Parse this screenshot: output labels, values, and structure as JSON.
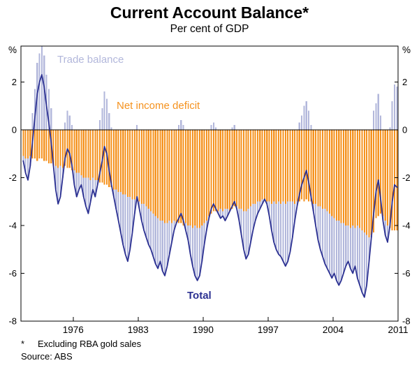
{
  "header": {
    "title": "Current Account Balance*",
    "subtitle": "Per cent of GDP"
  },
  "axes": {
    "unit_left": "%",
    "unit_right": "%",
    "ytick_labels": [
      "2",
      "0",
      "-2",
      "-4",
      "-6",
      "-8"
    ],
    "ytick_values": [
      2,
      0,
      -2,
      -4,
      -6,
      -8
    ],
    "xtick_labels": [
      "1976",
      "1983",
      "1990",
      "1997",
      "2004",
      "2011"
    ],
    "xtick_values": [
      1976,
      1983,
      1990,
      1997,
      2004,
      2011
    ]
  },
  "footnotes": {
    "asterisk": "*",
    "note": "Excluding RBA gold sales",
    "source": "Source: ABS"
  },
  "colors": {
    "trade": "#b2b7db",
    "nid": "#f5921e",
    "total": "#2c3192",
    "axis": "#000000"
  },
  "chart_data": {
    "type": "bar",
    "title": "Current Account Balance*",
    "subtitle": "Per cent of GDP",
    "ylabel": "%",
    "ylim": [
      -8,
      3.5
    ],
    "xlim": [
      1970.875,
      2011.5
    ],
    "frequency": "quarterly",
    "x_start": 1971.0,
    "x_step": 0.25,
    "legend_position": "annotations-inside-plot",
    "grid": false,
    "series": [
      {
        "name": "Trade balance",
        "type": "bar",
        "stacked_with": "Net income deficit",
        "color": "#b2b7db",
        "values": [
          -0.2,
          -0.6,
          -0.9,
          -0.4,
          0.7,
          1.7,
          2.8,
          3.2,
          3.5,
          3.1,
          2.3,
          1.7,
          0.9,
          0.0,
          -1.0,
          -1.5,
          -1.3,
          -0.4,
          0.3,
          0.8,
          0.6,
          0.2,
          -0.6,
          -1.0,
          -0.7,
          -0.4,
          -0.8,
          -1.2,
          -1.5,
          -0.9,
          -0.5,
          -0.7,
          -0.2,
          0.4,
          0.9,
          1.6,
          1.3,
          0.7,
          0.1,
          -0.3,
          -0.8,
          -1.2,
          -1.7,
          -2.1,
          -2.5,
          -2.7,
          -2.2,
          -1.4,
          -0.6,
          0.2,
          -0.3,
          -0.7,
          -1.1,
          -1.3,
          -1.5,
          -1.6,
          -1.8,
          -2.0,
          -2.1,
          -1.7,
          -2.1,
          -2.2,
          -1.8,
          -1.4,
          -0.8,
          -0.4,
          0.0,
          0.2,
          0.4,
          0.2,
          -0.3,
          -0.6,
          -1.2,
          -1.6,
          -2.1,
          -2.2,
          -2.0,
          -1.5,
          -0.9,
          -0.4,
          -0.1,
          0.2,
          0.3,
          0.1,
          -0.1,
          -0.4,
          -0.2,
          -0.5,
          -0.3,
          0.0,
          0.1,
          0.2,
          -0.1,
          -0.5,
          -1.1,
          -1.6,
          -2.0,
          -1.9,
          -1.5,
          -1.1,
          -0.7,
          -0.5,
          -0.3,
          -0.2,
          0.0,
          -0.1,
          -0.6,
          -1.1,
          -1.7,
          -1.9,
          -2.2,
          -2.2,
          -2.5,
          -2.6,
          -2.5,
          -2.1,
          -1.5,
          -0.7,
          -0.2,
          0.3,
          0.6,
          1.0,
          1.2,
          0.8,
          0.2,
          -0.3,
          -0.9,
          -1.4,
          -1.8,
          -2.0,
          -2.3,
          -2.4,
          -2.5,
          -2.6,
          -2.3,
          -2.5,
          -2.7,
          -2.4,
          -2.1,
          -1.7,
          -1.5,
          -1.7,
          -2.0,
          -1.6,
          -2.2,
          -2.4,
          -2.6,
          -2.7,
          -2.1,
          -1.0,
          -0.1,
          0.8,
          1.1,
          1.5,
          0.6,
          -0.2,
          -0.6,
          -0.7,
          0.1,
          1.2,
          1.9,
          1.8
        ]
      },
      {
        "name": "Net income deficit",
        "type": "bar",
        "color": "#f5921e",
        "values": [
          -1.1,
          -1.2,
          -1.2,
          -1.1,
          -1.2,
          -1.2,
          -1.3,
          -1.2,
          -1.2,
          -1.3,
          -1.3,
          -1.4,
          -1.4,
          -1.5,
          -1.5,
          -1.6,
          -1.5,
          -1.6,
          -1.5,
          -1.6,
          -1.6,
          -1.7,
          -1.7,
          -1.8,
          -1.8,
          -1.9,
          -2.0,
          -2.0,
          -2.0,
          -2.1,
          -2.0,
          -2.1,
          -2.1,
          -2.2,
          -2.2,
          -2.3,
          -2.3,
          -2.4,
          -2.4,
          -2.5,
          -2.5,
          -2.6,
          -2.6,
          -2.7,
          -2.7,
          -2.8,
          -2.8,
          -2.9,
          -2.9,
          -3.0,
          -3.0,
          -3.1,
          -3.1,
          -3.2,
          -3.3,
          -3.4,
          -3.5,
          -3.6,
          -3.7,
          -3.8,
          -3.8,
          -3.9,
          -3.9,
          -3.8,
          -3.9,
          -3.8,
          -3.9,
          -3.9,
          -3.9,
          -4.0,
          -3.9,
          -4.0,
          -4.0,
          -4.1,
          -4.0,
          -4.1,
          -4.1,
          -4.0,
          -3.9,
          -3.8,
          -3.6,
          -3.5,
          -3.4,
          -3.4,
          -3.4,
          -3.3,
          -3.4,
          -3.3,
          -3.3,
          -3.4,
          -3.3,
          -3.2,
          -3.2,
          -3.3,
          -3.3,
          -3.4,
          -3.4,
          -3.3,
          -3.2,
          -3.1,
          -3.1,
          -3.0,
          -3.0,
          -2.9,
          -2.9,
          -3.0,
          -3.0,
          -3.1,
          -3.0,
          -3.1,
          -3.0,
          -3.1,
          -3.0,
          -3.1,
          -3.0,
          -3.0,
          -3.0,
          -3.1,
          -3.0,
          -3.0,
          -2.9,
          -3.0,
          -2.9,
          -3.0,
          -3.0,
          -3.1,
          -3.1,
          -3.2,
          -3.2,
          -3.3,
          -3.3,
          -3.4,
          -3.5,
          -3.6,
          -3.7,
          -3.8,
          -3.8,
          -3.9,
          -3.9,
          -4.0,
          -4.0,
          -4.1,
          -4.0,
          -4.1,
          -4.0,
          -4.1,
          -4.2,
          -4.3,
          -4.4,
          -4.5,
          -4.4,
          -4.3,
          -3.7,
          -3.6,
          -3.5,
          -3.6,
          -3.8,
          -4.0,
          -4.1,
          -4.2,
          -4.2,
          -4.2
        ]
      },
      {
        "name": "Total",
        "type": "line",
        "color": "#2c3192",
        "values": [
          -1.3,
          -1.8,
          -2.1,
          -1.5,
          -0.5,
          0.5,
          1.5,
          2.0,
          2.3,
          1.8,
          1.0,
          0.3,
          -0.5,
          -1.5,
          -2.5,
          -3.1,
          -2.8,
          -2.0,
          -1.2,
          -0.8,
          -1.0,
          -1.5,
          -2.3,
          -2.8,
          -2.5,
          -2.3,
          -2.8,
          -3.2,
          -3.5,
          -3.0,
          -2.5,
          -2.8,
          -2.3,
          -1.8,
          -1.3,
          -0.7,
          -1.0,
          -1.7,
          -2.3,
          -2.8,
          -3.3,
          -3.8,
          -4.3,
          -4.8,
          -5.2,
          -5.5,
          -5.0,
          -4.3,
          -3.5,
          -2.8,
          -3.3,
          -3.8,
          -4.2,
          -4.5,
          -4.8,
          -5.0,
          -5.3,
          -5.6,
          -5.8,
          -5.5,
          -5.9,
          -6.1,
          -5.7,
          -5.2,
          -4.7,
          -4.2,
          -3.9,
          -3.7,
          -3.5,
          -3.8,
          -4.2,
          -4.6,
          -5.2,
          -5.7,
          -6.1,
          -6.3,
          -6.1,
          -5.5,
          -4.8,
          -4.2,
          -3.7,
          -3.3,
          -3.1,
          -3.3,
          -3.5,
          -3.7,
          -3.6,
          -3.8,
          -3.6,
          -3.4,
          -3.2,
          -3.0,
          -3.3,
          -3.8,
          -4.4,
          -5.0,
          -5.4,
          -5.2,
          -4.7,
          -4.2,
          -3.8,
          -3.5,
          -3.3,
          -3.1,
          -2.9,
          -3.1,
          -3.6,
          -4.2,
          -4.7,
          -5.0,
          -5.2,
          -5.3,
          -5.5,
          -5.7,
          -5.5,
          -5.1,
          -4.5,
          -3.8,
          -3.2,
          -2.7,
          -2.3,
          -2.0,
          -1.7,
          -2.2,
          -2.8,
          -3.4,
          -4.0,
          -4.6,
          -5.0,
          -5.3,
          -5.6,
          -5.8,
          -6.0,
          -6.2,
          -6.0,
          -6.3,
          -6.5,
          -6.3,
          -6.0,
          -5.7,
          -5.5,
          -5.8,
          -6.0,
          -5.7,
          -6.2,
          -6.5,
          -6.8,
          -7.0,
          -6.5,
          -5.5,
          -4.5,
          -3.5,
          -2.6,
          -2.1,
          -2.9,
          -3.8,
          -4.4,
          -4.7,
          -4.0,
          -3.0,
          -2.3,
          -2.4
        ]
      }
    ]
  }
}
